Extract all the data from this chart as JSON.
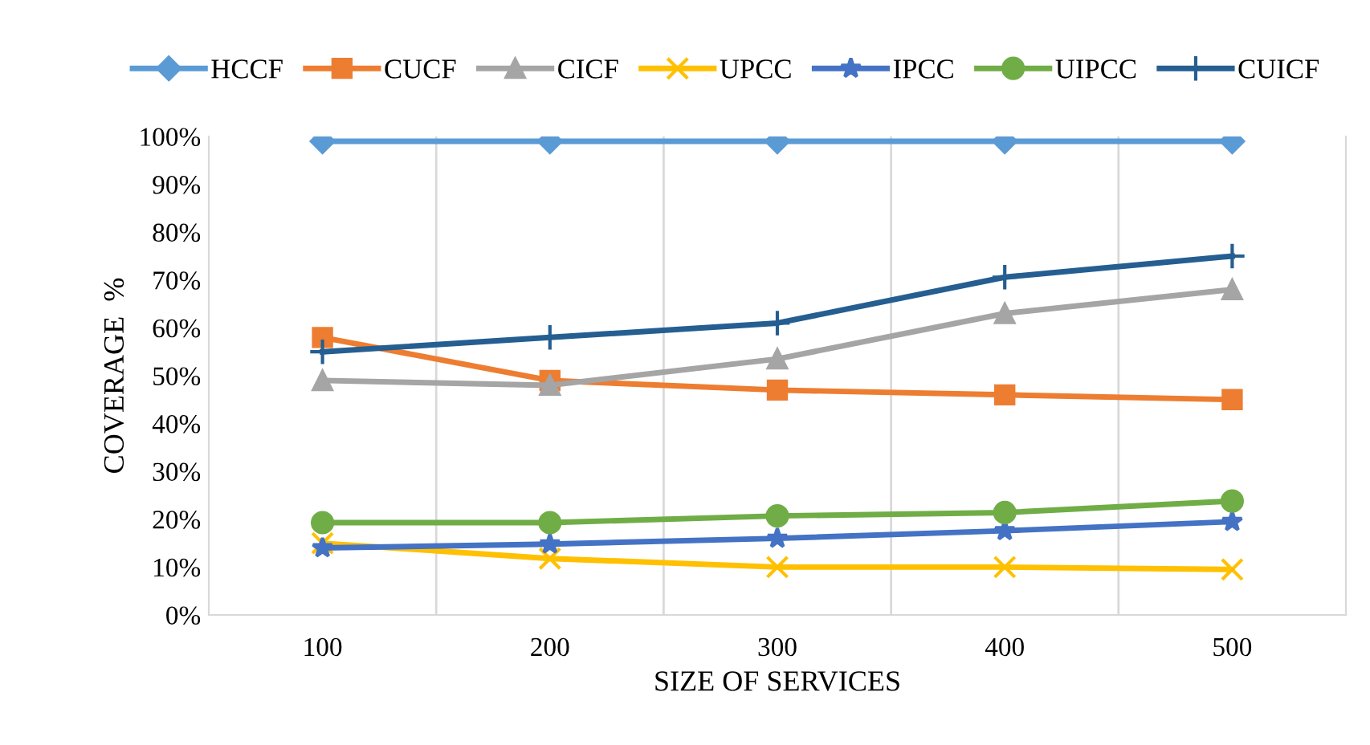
{
  "chart_data": {
    "type": "line",
    "xlabel": "SIZE OF SERVICES",
    "ylabel": "COVERAGE  %",
    "categories": [
      "100",
      "200",
      "300",
      "400",
      "500"
    ],
    "series": [
      {
        "name": "HCCF",
        "color": "#5b9bd5",
        "marker": "diamond",
        "values": [
          99,
          99,
          99,
          99,
          99
        ]
      },
      {
        "name": "CUCF",
        "color": "#ed7d31",
        "marker": "square",
        "values": [
          58,
          49,
          47,
          46,
          45
        ]
      },
      {
        "name": "CICF",
        "color": "#a5a5a5",
        "marker": "triangle",
        "values": [
          49,
          48,
          53.5,
          63,
          68
        ]
      },
      {
        "name": "UPCC",
        "color": "#ffc000",
        "marker": "x",
        "values": [
          15,
          11.8,
          10,
          10,
          9.5
        ]
      },
      {
        "name": "IPCC",
        "color": "#4472c4",
        "marker": "star",
        "values": [
          14,
          14.8,
          16,
          17.6,
          19.5
        ]
      },
      {
        "name": "UIPCC",
        "color": "#70ad47",
        "marker": "circle",
        "values": [
          19.3,
          19.3,
          20.7,
          21.4,
          23.8
        ]
      },
      {
        "name": "CUICF",
        "color": "#255e91",
        "marker": "cross",
        "values": [
          55,
          58,
          61,
          70.6,
          75
        ]
      }
    ],
    "ylim": [
      0,
      100
    ],
    "yticks": [
      {
        "value": 0,
        "label": "0%"
      },
      {
        "value": 10,
        "label": "10%"
      },
      {
        "value": 20,
        "label": "20%"
      },
      {
        "value": 30,
        "label": "30%"
      },
      {
        "value": 40,
        "label": "40%"
      },
      {
        "value": 50,
        "label": "50%"
      },
      {
        "value": 60,
        "label": "60%"
      },
      {
        "value": 70,
        "label": "70%"
      },
      {
        "value": 80,
        "label": "80%"
      },
      {
        "value": 90,
        "label": "90%"
      },
      {
        "value": 100,
        "label": "100%"
      }
    ],
    "grid": "x",
    "legend": "top",
    "line_style": "solid"
  }
}
